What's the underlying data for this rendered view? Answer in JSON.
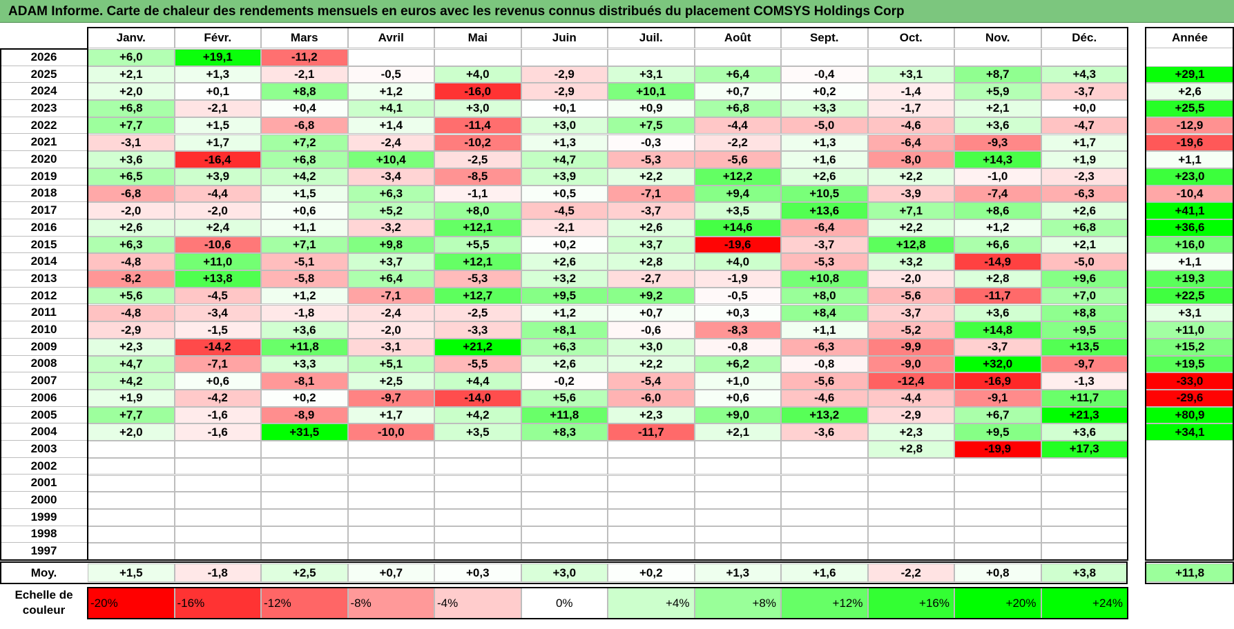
{
  "title": "ADAM Informe. Carte de chaleur des rendements mensuels en euros avec les revenus connus distribués du placement COMSYS Holdings Corp",
  "colors": {
    "neg_max": "#ff0000",
    "pos_max": "#00ff00",
    "neutral": "#ffffff",
    "title_bg": "#7cc67e"
  },
  "chart_data": {
    "type": "heatmap",
    "title": "ADAM Informe. Carte de chaleur des rendements mensuels en euros avec les revenus connus distribués du placement COMSYS Holdings Corp",
    "months": [
      "Janv.",
      "Févr.",
      "Mars",
      "Avril",
      "Mai",
      "Juin",
      "Juil.",
      "Août",
      "Sept.",
      "Oct.",
      "Nov.",
      "Déc."
    ],
    "year_header": "Année",
    "rows": [
      {
        "year": "2026",
        "values": [
          6.0,
          19.1,
          -11.2,
          null,
          null,
          null,
          null,
          null,
          null,
          null,
          null,
          null
        ],
        "annual": null
      },
      {
        "year": "2025",
        "values": [
          2.1,
          1.3,
          -2.1,
          -0.5,
          4.0,
          -2.9,
          3.1,
          6.4,
          -0.4,
          3.1,
          8.7,
          4.3
        ],
        "annual": 29.1
      },
      {
        "year": "2024",
        "values": [
          2.0,
          0.1,
          8.8,
          1.2,
          -16.0,
          -2.9,
          10.1,
          0.7,
          0.2,
          -1.4,
          5.9,
          -3.7
        ],
        "annual": 2.6
      },
      {
        "year": "2023",
        "values": [
          6.8,
          -2.1,
          0.4,
          4.1,
          3.0,
          0.1,
          0.9,
          6.8,
          3.3,
          -1.7,
          2.1,
          0.0
        ],
        "annual": 25.5
      },
      {
        "year": "2022",
        "values": [
          7.7,
          1.5,
          -6.8,
          1.4,
          -11.4,
          3.0,
          7.5,
          -4.4,
          -5.0,
          -4.6,
          3.6,
          -4.7
        ],
        "annual": -12.9
      },
      {
        "year": "2021",
        "values": [
          -3.1,
          1.7,
          7.2,
          -2.4,
          -10.2,
          1.3,
          -0.3,
          -2.2,
          1.3,
          -6.4,
          -9.3,
          1.7
        ],
        "annual": -19.6
      },
      {
        "year": "2020",
        "values": [
          3.6,
          -16.4,
          6.8,
          10.4,
          -2.5,
          4.7,
          -5.3,
          -5.6,
          1.6,
          -8.0,
          14.3,
          1.9
        ],
        "annual": 1.1
      },
      {
        "year": "2019",
        "values": [
          6.5,
          3.9,
          4.2,
          -3.4,
          -8.5,
          3.9,
          2.2,
          12.2,
          2.6,
          2.2,
          -1.0,
          -2.3
        ],
        "annual": 23.0
      },
      {
        "year": "2018",
        "values": [
          -6.8,
          -4.4,
          1.5,
          6.3,
          -1.1,
          0.5,
          -7.1,
          9.4,
          10.5,
          -3.9,
          -7.4,
          -6.3
        ],
        "annual": -10.4
      },
      {
        "year": "2017",
        "values": [
          -2.0,
          -2.0,
          0.6,
          5.2,
          8.0,
          -4.5,
          -3.7,
          3.5,
          13.6,
          7.1,
          8.6,
          2.6
        ],
        "annual": 41.1
      },
      {
        "year": "2016",
        "values": [
          2.6,
          2.4,
          1.1,
          -3.2,
          12.1,
          -2.1,
          2.6,
          14.6,
          -6.4,
          2.2,
          1.2,
          6.8
        ],
        "annual": 36.6
      },
      {
        "year": "2015",
        "values": [
          6.3,
          -10.6,
          7.1,
          9.8,
          5.5,
          0.2,
          3.7,
          -19.6,
          -3.7,
          12.8,
          6.6,
          2.1
        ],
        "annual": 16.0
      },
      {
        "year": "2014",
        "values": [
          -4.8,
          11.0,
          -5.1,
          3.7,
          12.1,
          2.6,
          2.8,
          4.0,
          -5.3,
          3.2,
          -14.9,
          -5.0
        ],
        "annual": 1.1
      },
      {
        "year": "2013",
        "values": [
          -8.2,
          13.8,
          -5.8,
          6.4,
          -5.3,
          3.2,
          -2.7,
          -1.9,
          10.8,
          -2.0,
          2.8,
          9.6
        ],
        "annual": 19.3
      },
      {
        "year": "2012",
        "values": [
          5.6,
          -4.5,
          1.2,
          -7.1,
          12.7,
          9.5,
          9.2,
          -0.5,
          8.0,
          -5.6,
          -11.7,
          7.0
        ],
        "annual": 22.5
      },
      {
        "year": "2011",
        "values": [
          -4.8,
          -3.4,
          -1.8,
          -2.4,
          -2.5,
          1.2,
          0.7,
          0.3,
          8.4,
          -3.7,
          3.6,
          8.8
        ],
        "annual": 3.1
      },
      {
        "year": "2010",
        "values": [
          -2.9,
          -1.5,
          3.6,
          -2.0,
          -3.3,
          8.1,
          -0.6,
          -8.3,
          1.1,
          -5.2,
          14.8,
          9.5
        ],
        "annual": 11.0
      },
      {
        "year": "2009",
        "values": [
          2.3,
          -14.2,
          11.8,
          -3.1,
          21.2,
          6.3,
          3.0,
          -0.8,
          -6.3,
          -9.9,
          -3.7,
          13.5
        ],
        "annual": 15.2
      },
      {
        "year": "2008",
        "values": [
          4.7,
          -7.1,
          3.3,
          5.1,
          -5.5,
          2.6,
          2.2,
          6.2,
          -0.8,
          -9.0,
          32.0,
          -9.7
        ],
        "annual": 19.5
      },
      {
        "year": "2007",
        "values": [
          4.2,
          0.6,
          -8.1,
          2.5,
          4.4,
          -0.2,
          -5.4,
          1.0,
          -5.6,
          -12.4,
          -16.9,
          -1.3
        ],
        "annual": -33.0
      },
      {
        "year": "2006",
        "values": [
          1.9,
          -4.2,
          0.2,
          -9.7,
          -14.0,
          5.6,
          -6.0,
          0.6,
          -4.6,
          -4.4,
          -9.1,
          11.7
        ],
        "annual": -29.6
      },
      {
        "year": "2005",
        "values": [
          7.7,
          -1.6,
          -8.9,
          1.7,
          4.2,
          11.8,
          2.3,
          9.0,
          13.2,
          -2.9,
          6.7,
          21.3
        ],
        "annual": 80.9
      },
      {
        "year": "2004",
        "values": [
          2.0,
          -1.6,
          31.5,
          -10.0,
          3.5,
          8.3,
          -11.7,
          2.1,
          -3.6,
          2.3,
          9.5,
          3.6
        ],
        "annual": 34.1
      },
      {
        "year": "2003",
        "values": [
          null,
          null,
          null,
          null,
          null,
          null,
          null,
          null,
          null,
          2.8,
          -19.9,
          17.3
        ],
        "annual": null
      },
      {
        "year": "2002",
        "values": [
          null,
          null,
          null,
          null,
          null,
          null,
          null,
          null,
          null,
          null,
          null,
          null
        ],
        "annual": null
      },
      {
        "year": "2001",
        "values": [
          null,
          null,
          null,
          null,
          null,
          null,
          null,
          null,
          null,
          null,
          null,
          null
        ],
        "annual": null
      },
      {
        "year": "2000",
        "values": [
          null,
          null,
          null,
          null,
          null,
          null,
          null,
          null,
          null,
          null,
          null,
          null
        ],
        "annual": null
      },
      {
        "year": "1999",
        "values": [
          null,
          null,
          null,
          null,
          null,
          null,
          null,
          null,
          null,
          null,
          null,
          null
        ],
        "annual": null
      },
      {
        "year": "1998",
        "values": [
          null,
          null,
          null,
          null,
          null,
          null,
          null,
          null,
          null,
          null,
          null,
          null
        ],
        "annual": null
      },
      {
        "year": "1997",
        "values": [
          null,
          null,
          null,
          null,
          null,
          null,
          null,
          null,
          null,
          null,
          null,
          null
        ],
        "annual": null
      }
    ],
    "average_label": "Moy.",
    "average": [
      1.5,
      -1.8,
      2.5,
      0.7,
      0.3,
      3.0,
      0.2,
      1.3,
      1.6,
      -2.2,
      0.8,
      3.8
    ],
    "average_annual": 11.8,
    "scale_label": "Echelle de couleur",
    "scale": [
      {
        "label": "-20%",
        "value": -20
      },
      {
        "label": "-16%",
        "value": -16
      },
      {
        "label": "-12%",
        "value": -12
      },
      {
        "label": "-8%",
        "value": -8
      },
      {
        "label": "-4%",
        "value": -4
      },
      {
        "label": "0%",
        "value": 0
      },
      {
        "label": "+4%",
        "value": 4
      },
      {
        "label": "+8%",
        "value": 8
      },
      {
        "label": "+12%",
        "value": 12
      },
      {
        "label": "+16%",
        "value": 16
      },
      {
        "label": "+20%",
        "value": 20
      },
      {
        "label": "+24%",
        "value": 24
      }
    ]
  }
}
